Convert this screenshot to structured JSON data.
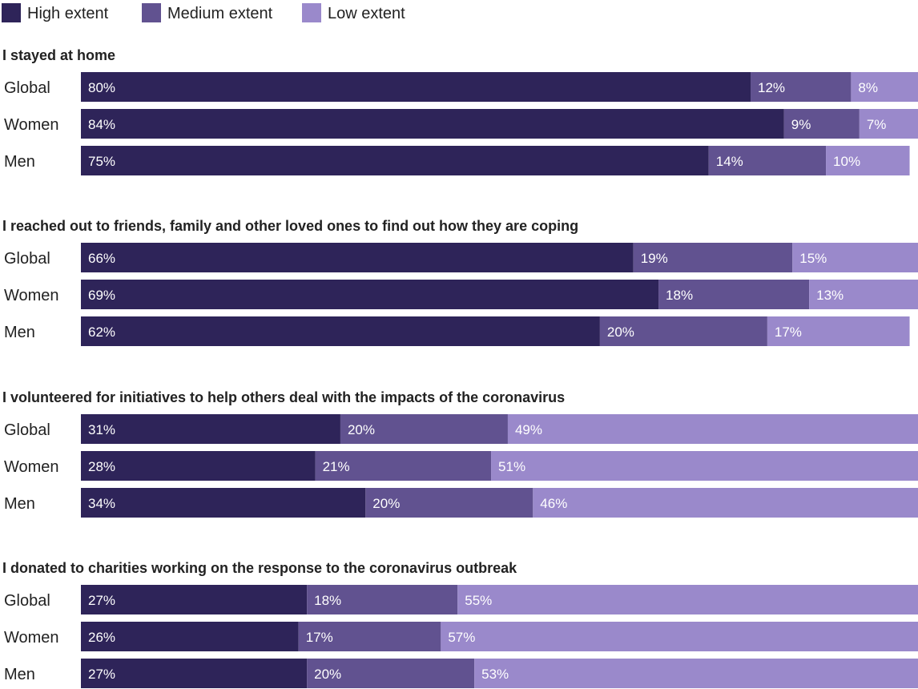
{
  "chart_data": {
    "type": "bar",
    "orientation": "horizontal",
    "stacked": true,
    "legend_position": "top-left",
    "xlim": [
      0,
      100
    ],
    "legend": [
      {
        "key": "high",
        "label": "High extent",
        "color": "#2e2459"
      },
      {
        "key": "medium",
        "label": "Medium extent",
        "color": "#615290"
      },
      {
        "key": "low",
        "label": "Low extent",
        "color": "#9a89cb"
      }
    ],
    "groups": [
      {
        "title": "I stayed at home",
        "rows": [
          {
            "label": "Global",
            "values": [
              80,
              12,
              8
            ]
          },
          {
            "label": "Women",
            "values": [
              84,
              9,
              7
            ]
          },
          {
            "label": "Men",
            "values": [
              75,
              14,
              10
            ]
          }
        ]
      },
      {
        "title": "I reached out to friends, family and other loved ones to find out how they are coping",
        "rows": [
          {
            "label": "Global",
            "values": [
              66,
              19,
              15
            ]
          },
          {
            "label": "Women",
            "values": [
              69,
              18,
              13
            ]
          },
          {
            "label": "Men",
            "values": [
              62,
              20,
              17
            ]
          }
        ]
      },
      {
        "title": "I volunteered for initiatives to help others deal with the impacts of the coronavirus",
        "rows": [
          {
            "label": "Global",
            "values": [
              31,
              20,
              49
            ]
          },
          {
            "label": "Women",
            "values": [
              28,
              21,
              51
            ]
          },
          {
            "label": "Men",
            "values": [
              34,
              20,
              46
            ]
          }
        ]
      },
      {
        "title": "I donated to charities working on the response to the coronavirus outbreak",
        "rows": [
          {
            "label": "Global",
            "values": [
              27,
              18,
              55
            ]
          },
          {
            "label": "Women",
            "values": [
              26,
              17,
              57
            ]
          },
          {
            "label": "Men",
            "values": [
              27,
              20,
              53
            ]
          }
        ]
      }
    ]
  }
}
